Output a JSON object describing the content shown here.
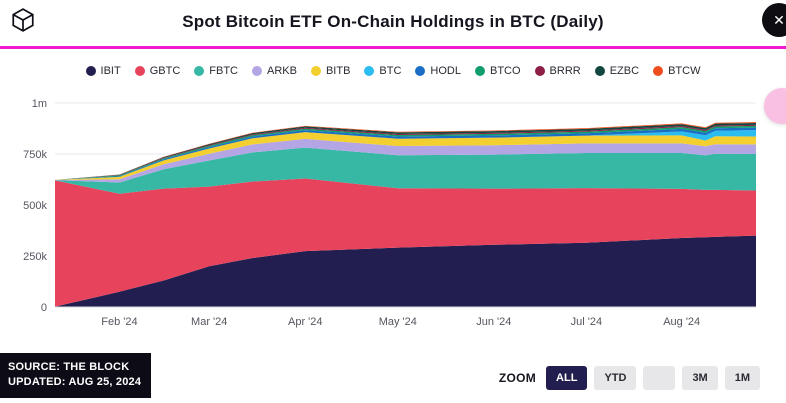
{
  "header": {
    "title": "Spot Bitcoin ETF On-Chain Holdings in BTC (Daily)",
    "accent_color": "#f218cf",
    "close_glyph": "✕"
  },
  "legend": [
    {
      "name": "IBIT",
      "color": "#221f50"
    },
    {
      "name": "GBTC",
      "color": "#e8435c"
    },
    {
      "name": "FBTC",
      "color": "#36b8a5"
    },
    {
      "name": "ARKB",
      "color": "#b4a6e4"
    },
    {
      "name": "BITB",
      "color": "#f3d02f"
    },
    {
      "name": "BTC",
      "color": "#2bbcf0"
    },
    {
      "name": "HODL",
      "color": "#1b6ec6"
    },
    {
      "name": "BTCO",
      "color": "#0f9d6b"
    },
    {
      "name": "BRRR",
      "color": "#8e1e45"
    },
    {
      "name": "EZBC",
      "color": "#11473f"
    },
    {
      "name": "BTCW",
      "color": "#ee4d1e"
    }
  ],
  "chart_data": {
    "type": "area",
    "stacked": true,
    "title": "Spot Bitcoin ETF On-Chain Holdings in BTC (Daily)",
    "values_unit": "thousands of BTC",
    "y_max": 1000,
    "y_tick_values": [
      0,
      250,
      500,
      750,
      1000
    ],
    "y_tick_labels": [
      "0",
      "250k",
      "500k",
      "750k",
      "1m"
    ],
    "x_tick_labels": [
      "Feb '24",
      "Mar '24",
      "Apr '24",
      "May '24",
      "Jun '24",
      "Jul '24",
      "Aug '24"
    ],
    "x_tick_pos": [
      0.092,
      0.22,
      0.357,
      0.489,
      0.626,
      0.758,
      0.894
    ],
    "x": [
      0,
      0.092,
      0.155,
      0.22,
      0.282,
      0.357,
      0.489,
      0.626,
      0.758,
      0.894,
      0.928,
      0.942,
      1.0
    ],
    "series": [
      {
        "name": "IBIT",
        "color": "#221f50",
        "values": [
          2,
          75,
          130,
          200,
          240,
          274,
          291,
          305,
          315,
          338,
          342,
          344,
          350
        ]
      },
      {
        "name": "GBTC",
        "color": "#e8435c",
        "values": [
          619,
          480,
          450,
          390,
          375,
          356,
          291,
          275,
          268,
          241,
          232,
          230,
          221
        ]
      },
      {
        "name": "FBTC",
        "color": "#36b8a5",
        "values": [
          1,
          55,
          95,
          128,
          143,
          151,
          162,
          167,
          172,
          176,
          170,
          177,
          179
        ]
      },
      {
        "name": "ARKB",
        "color": "#b4a6e4",
        "values": [
          0.3,
          16,
          25,
          33,
          39,
          43,
          45,
          46,
          47,
          47,
          44,
          47,
          47
        ]
      },
      {
        "name": "BITB",
        "color": "#f3d02f",
        "values": [
          0.7,
          12,
          19,
          26,
          30,
          33,
          36,
          37,
          38,
          39,
          28,
          39,
          39
        ]
      },
      {
        "name": "BTC",
        "color": "#2bbcf0",
        "values": [
          0,
          0,
          0,
          0,
          0,
          0,
          0,
          0,
          0,
          20,
          26,
          27,
          31
        ]
      },
      {
        "name": "HODL",
        "color": "#1b6ec6",
        "values": [
          0.1,
          3,
          5,
          7,
          9,
          10,
          11,
          11,
          11.5,
          12,
          12,
          12,
          12
        ]
      },
      {
        "name": "BTCO",
        "color": "#0f9d6b",
        "values": [
          0.1,
          4,
          5,
          6,
          6.5,
          7,
          7,
          7.5,
          8,
          9,
          9,
          9,
          9
        ]
      },
      {
        "name": "BRRR",
        "color": "#8e1e45",
        "values": [
          0.05,
          2,
          3,
          3.5,
          4,
          4.5,
          5,
          5,
          5,
          5,
          5,
          5,
          5
        ]
      },
      {
        "name": "EZBC",
        "color": "#11473f",
        "values": [
          0.05,
          2,
          3.5,
          5,
          6,
          7,
          8,
          8.5,
          8.8,
          9,
          9,
          9,
          9
        ]
      },
      {
        "name": "BTCW",
        "color": "#ee4d1e",
        "values": [
          0,
          0.5,
          1,
          1.5,
          2,
          2.5,
          3,
          3.3,
          3.6,
          4,
          4,
          4,
          4
        ]
      }
    ],
    "legend_position": "top",
    "grid": true
  },
  "floating_widget": {
    "color": "#f9c0e3"
  },
  "footer": {
    "source": "SOURCE: THE BLOCK",
    "updated": "UPDATED: AUG 25, 2024",
    "zoom_label": "ZOOM",
    "zoom_buttons": [
      {
        "label": "ALL",
        "active": true
      },
      {
        "label": "YTD",
        "active": false
      },
      {
        "label": "",
        "active": false
      },
      {
        "label": "3M",
        "active": false
      },
      {
        "label": "1M",
        "active": false
      }
    ]
  }
}
